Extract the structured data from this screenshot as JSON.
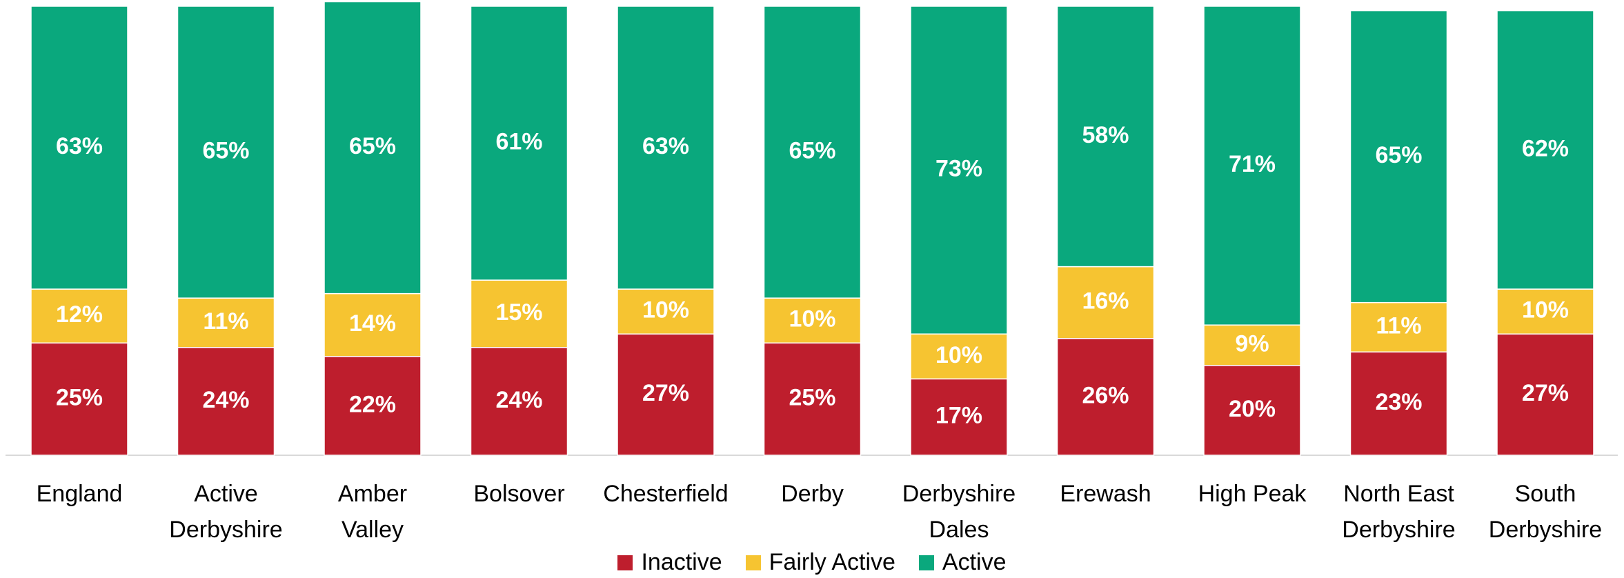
{
  "chart_data": {
    "type": "stacked-bar",
    "categories": [
      "England",
      "Active Derbyshire",
      "Amber Valley",
      "Bolsover",
      "Chesterfield",
      "Derby",
      "Derbyshire Dales",
      "Erewash",
      "High Peak",
      "North East Derbyshire",
      "South Derbyshire"
    ],
    "series": [
      {
        "name": "Inactive",
        "color": "#be1e2d",
        "values": [
          25,
          24,
          22,
          24,
          27,
          25,
          17,
          26,
          20,
          23,
          27
        ],
        "value_labels": [
          "25%",
          "24%",
          "22%",
          "24%",
          "27%",
          "25%",
          "17%",
          "26%",
          "20%",
          "23%",
          "27%"
        ]
      },
      {
        "name": "Fairly Active",
        "color": "#f6c431",
        "values": [
          12,
          11,
          14,
          15,
          10,
          10,
          10,
          16,
          9,
          11,
          10
        ],
        "value_labels": [
          "12%",
          "11%",
          "14%",
          "15%",
          "10%",
          "10%",
          "10%",
          "16%",
          "9%",
          "11%",
          "10%"
        ]
      },
      {
        "name": "Active",
        "color": "#0aa87d",
        "values": [
          63,
          65,
          65,
          61,
          63,
          65,
          73,
          58,
          71,
          65,
          62
        ],
        "value_labels": [
          "63%",
          "65%",
          "65%",
          "61%",
          "63%",
          "65%",
          "73%",
          "58%",
          "71%",
          "65%",
          "62%"
        ]
      }
    ],
    "ylim": [
      0,
      100
    ],
    "legend": "bottom"
  }
}
